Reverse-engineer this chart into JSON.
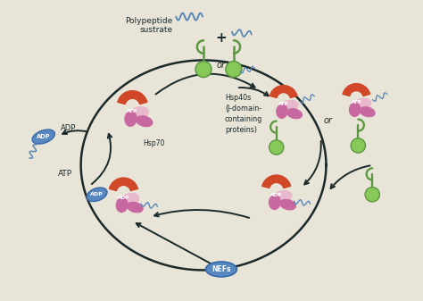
{
  "background_color": "#e8e4d8",
  "colors": {
    "orange_red": "#d04828",
    "pink_light": "#e8b8cc",
    "pink_dark": "#c868a0",
    "green_dark": "#5a9840",
    "green_light": "#88c858",
    "blue_dark": "#3868a8",
    "blue_medium": "#5888c0",
    "dark": "#1a2a2a",
    "text": "#1a2a2a"
  },
  "labels": {
    "polypeptide": "Polypeptide\nsustrate",
    "hsp40": "Hsp40s\n(J-domain-\ncontaining\nproteins)",
    "hsp70": "Hsp70",
    "atp": "ATP",
    "adp": "ADP",
    "nefs": "NEFs",
    "or": "or",
    "plus": "+"
  }
}
